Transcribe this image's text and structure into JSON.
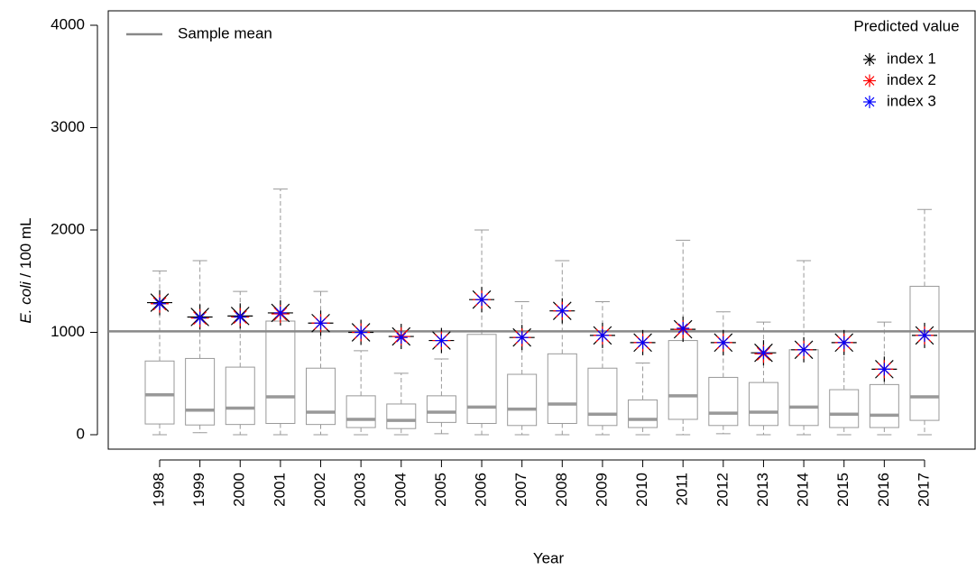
{
  "chart_data": {
    "type": "boxplot",
    "x_label": "Year",
    "y_label": {
      "italic": "E. coli",
      "rest": "/ 100 mL"
    },
    "categories": [
      "1998",
      "1999",
      "2000",
      "2001",
      "2002",
      "2003",
      "2004",
      "2005",
      "2006",
      "2007",
      "2008",
      "2009",
      "2010",
      "2011",
      "2012",
      "2013",
      "2014",
      "2015",
      "2016",
      "2017"
    ],
    "boxes": [
      {
        "min": 0,
        "q1": 105,
        "median": 390,
        "q3": 720,
        "max": 1600
      },
      {
        "min": 20,
        "q1": 95,
        "median": 240,
        "q3": 745,
        "max": 1700
      },
      {
        "min": 0,
        "q1": 100,
        "median": 260,
        "q3": 660,
        "max": 1400
      },
      {
        "min": 0,
        "q1": 110,
        "median": 370,
        "q3": 1110,
        "max": 2400
      },
      {
        "min": 0,
        "q1": 100,
        "median": 220,
        "q3": 650,
        "max": 1400
      },
      {
        "min": 0,
        "q1": 70,
        "median": 150,
        "q3": 380,
        "max": 820
      },
      {
        "min": 0,
        "q1": 60,
        "median": 140,
        "q3": 300,
        "max": 600
      },
      {
        "min": 10,
        "q1": 120,
        "median": 220,
        "q3": 380,
        "max": 740
      },
      {
        "min": 0,
        "q1": 110,
        "median": 270,
        "q3": 980,
        "max": 2000
      },
      {
        "min": 0,
        "q1": 90,
        "median": 250,
        "q3": 590,
        "max": 1300
      },
      {
        "min": 0,
        "q1": 110,
        "median": 300,
        "q3": 790,
        "max": 1700
      },
      {
        "min": 0,
        "q1": 90,
        "median": 200,
        "q3": 650,
        "max": 1300
      },
      {
        "min": 0,
        "q1": 70,
        "median": 150,
        "q3": 340,
        "max": 700
      },
      {
        "min": 0,
        "q1": 150,
        "median": 380,
        "q3": 920,
        "max": 1900
      },
      {
        "min": 10,
        "q1": 90,
        "median": 210,
        "q3": 560,
        "max": 1200
      },
      {
        "min": 0,
        "q1": 90,
        "median": 220,
        "q3": 510,
        "max": 1100
      },
      {
        "min": 0,
        "q1": 90,
        "median": 270,
        "q3": 830,
        "max": 1700
      },
      {
        "min": 0,
        "q1": 70,
        "median": 200,
        "q3": 440,
        "max": 900
      },
      {
        "min": 0,
        "q1": 70,
        "median": 190,
        "q3": 490,
        "max": 1100
      },
      {
        "min": 0,
        "q1": 140,
        "median": 370,
        "q3": 1450,
        "max": 2200
      }
    ],
    "box_color": "#999999",
    "reference_line": {
      "name": "Sample mean",
      "value": 1010,
      "color": "#888888"
    },
    "legend_title": "Predicted value",
    "series": [
      {
        "name": "index 1",
        "color": "#000000",
        "values": [
          1290,
          1150,
          1160,
          1190,
          1090,
          1000,
          960,
          920,
          1320,
          950,
          1210,
          970,
          900,
          1030,
          900,
          800,
          830,
          900,
          640,
          970
        ]
      },
      {
        "name": "index 2",
        "color": "#ff0000",
        "values": [
          1280,
          1140,
          1150,
          1180,
          1090,
          1000,
          960,
          920,
          1320,
          950,
          1210,
          970,
          900,
          1030,
          900,
          790,
          830,
          900,
          640,
          970
        ]
      },
      {
        "name": "index 3",
        "color": "#0000ff",
        "values": [
          1280,
          1140,
          1150,
          1190,
          1090,
          1000,
          950,
          920,
          1320,
          950,
          1210,
          970,
          900,
          1040,
          900,
          800,
          830,
          900,
          640,
          970
        ]
      }
    ],
    "ylim": [
      -141,
      4141
    ],
    "yticks": [
      0,
      1000,
      2000,
      3000,
      4000
    ]
  }
}
